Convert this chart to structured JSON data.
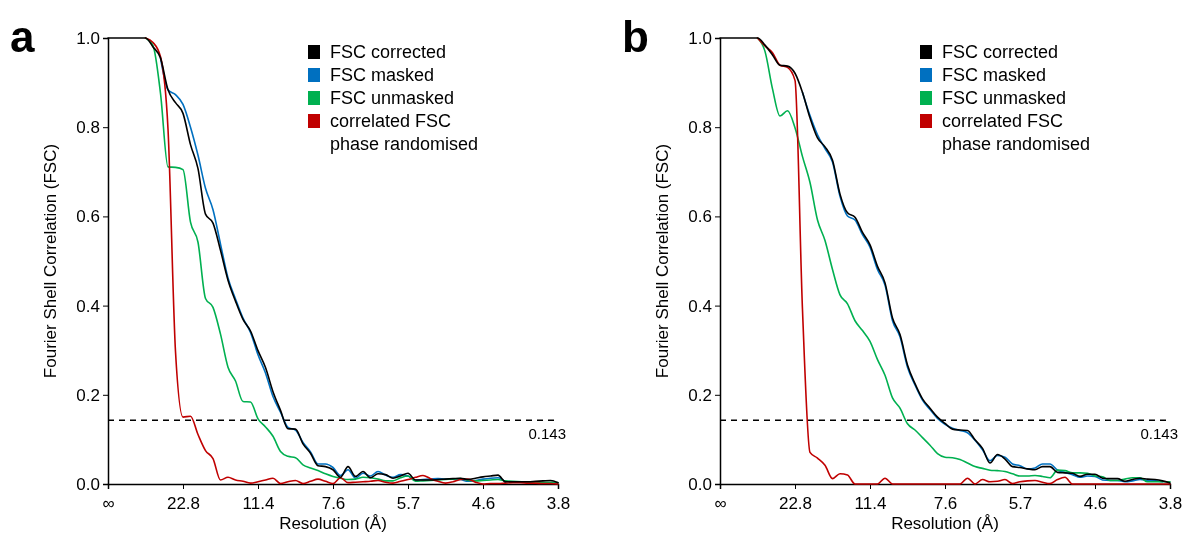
{
  "chart_data": [
    {
      "type": "line",
      "title": "a",
      "xlabel": "Resolution (Å)",
      "ylabel": "Fourier Shell Correlation (FSC)",
      "legend": "top right",
      "line_style": "solid",
      "marker": "none",
      "categories": [
        "∞",
        null,
        null,
        null,
        null,
        null,
        null,
        null,
        null,
        null,
        "22.8",
        null,
        null,
        null,
        null,
        null,
        null,
        null,
        null,
        null,
        "11.4",
        null,
        null,
        null,
        null,
        null,
        null,
        null,
        null,
        null,
        "7.6",
        null,
        null,
        null,
        null,
        null,
        null,
        null,
        null,
        null,
        "5.7",
        null,
        null,
        null,
        null,
        null,
        null,
        null,
        null,
        null,
        "4.6",
        null,
        null,
        null,
        null,
        null,
        null,
        null,
        null,
        null,
        "3.8"
      ],
      "ylim": [
        0,
        1
      ],
      "yticks": [
        {
          "value": 0,
          "label": "0.0"
        },
        {
          "value": 0.2,
          "label": "0.2"
        },
        {
          "value": 0.4,
          "label": "0.4"
        },
        {
          "value": 0.6,
          "label": "0.6"
        },
        {
          "value": 0.8,
          "label": "0.8"
        },
        {
          "value": 1,
          "label": "1.0"
        }
      ],
      "ref_lines": [
        {
          "axis": "y",
          "value": 0.143,
          "label": "0.143",
          "color": "#000000",
          "line_style": "dashed"
        }
      ],
      "series": [
        {
          "name": "FSC corrected",
          "color": "#000000",
          "values": [
            1,
            1,
            1,
            1,
            1,
            1,
            0.98,
            0.955,
            0.884,
            0.855,
            0.831,
            0.761,
            0.707,
            0.605,
            0.585,
            0.524,
            0.457,
            0.41,
            0.369,
            0.343,
            0.299,
            0.261,
            0.207,
            0.165,
            0.124,
            0.123,
            0.09,
            0.069,
            0.041,
            0.039,
            0.032,
            0.015,
            0.039,
            0.017,
            0.028,
            0.014,
            0.023,
            0.021,
            0.013,
            0.018,
            0.024,
            0.009,
            0.009,
            0.009,
            0.01,
            0.011,
            0.012,
            0.013,
            0.01,
            0.013,
            0.016,
            0.018,
            0.02,
            0.005,
            0.005,
            0.005,
            0.005,
            0.006,
            0.007,
            0.008,
            0.003
          ]
        },
        {
          "name": "FSC masked",
          "color": "#0070c0",
          "values": [
            null,
            null,
            null,
            null,
            null,
            null,
            null,
            0.955,
            0.884,
            0.873,
            0.851,
            0.8,
            0.737,
            0.663,
            0.615,
            0.538,
            0.462,
            0.415,
            0.372,
            0.34,
            0.29,
            0.249,
            0.196,
            0.161,
            0.127,
            0.121,
            0.093,
            0.072,
            0.045,
            0.045,
            0.037,
            0.019,
            0.032,
            0.013,
            0.024,
            0.018,
            0.028,
            0.02,
            0.015,
            0.021,
            0.018,
            0.009,
            0.01,
            0.011,
            0.012,
            0.011,
            0.011,
            0.01,
            0.006,
            0.008,
            0.011,
            0.013,
            0.014,
            0.004,
            null,
            null,
            null,
            null,
            null,
            null,
            null
          ]
        },
        {
          "name": "FSC unmasked",
          "color": "#00b050",
          "values": [
            null,
            null,
            null,
            null,
            null,
            1,
            0.983,
            0.876,
            0.711,
            0.71,
            0.705,
            0.587,
            0.542,
            0.416,
            0.396,
            0.336,
            0.262,
            0.231,
            0.185,
            0.184,
            0.146,
            0.128,
            0.107,
            0.073,
            0.062,
            0.059,
            0.043,
            0.036,
            0.03,
            0.023,
            0.017,
            0.013,
            0.01,
            0.011,
            0.015,
            0.014,
            0.011,
            0.007,
            0.007,
            0.014,
            0.018,
            0.006,
            0.007,
            0.008,
            0.009,
            0.01,
            0.011,
            0.012,
            0.008,
            0.007,
            0.008,
            0.009,
            0.01,
            0.007,
            null,
            null,
            null,
            0.004,
            0.004,
            0.004,
            0.003
          ]
        },
        {
          "name": "correlated FSC phase randomised",
          "color": "#c00000",
          "values": [
            null,
            null,
            null,
            null,
            null,
            1,
            0.99,
            0.958,
            0.796,
            0.297,
            0.15,
            0.152,
            0.111,
            0.075,
            0.057,
            0.009,
            0.015,
            0.009,
            0.006,
            0.002,
            0.005,
            0.009,
            0.013,
            0.001,
            0.005,
            0.008,
            0.001,
            0.006,
            0.011,
            0.006,
            0.001,
            0.014,
            0.003,
            0.004,
            0.005,
            0.006,
            0.008,
            0.004,
            0.002,
            0.006,
            0.01,
            0.015,
            0.019,
            0.012,
            0.006,
            0.002,
            0.005,
            0.01,
            0.011,
            0.004,
            0,
            0.001,
            0.001,
            0.002,
            0.003,
            0.003,
            0.002,
            0.002,
            0.001,
            0.001,
            0
          ]
        }
      ]
    },
    {
      "type": "line",
      "title": "b",
      "xlabel": "Resolution (Å)",
      "ylabel": "Fourier Shell Correlation (FSC)",
      "legend": "top right",
      "line_style": "solid",
      "marker": "none",
      "categories": [
        "∞",
        null,
        null,
        null,
        null,
        null,
        null,
        null,
        null,
        null,
        "22.8",
        null,
        null,
        null,
        null,
        null,
        null,
        null,
        null,
        null,
        "11.4",
        null,
        null,
        null,
        null,
        null,
        null,
        null,
        null,
        null,
        "7.6",
        null,
        null,
        null,
        null,
        null,
        null,
        null,
        null,
        null,
        "5.7",
        null,
        null,
        null,
        null,
        null,
        null,
        null,
        null,
        null,
        "4.6",
        null,
        null,
        null,
        null,
        null,
        null,
        null,
        null,
        null,
        "3.8"
      ],
      "ylim": [
        0,
        1
      ],
      "yticks": [
        {
          "value": 0,
          "label": "0.0"
        },
        {
          "value": 0.2,
          "label": "0.2"
        },
        {
          "value": 0.4,
          "label": "0.4"
        },
        {
          "value": 0.6,
          "label": "0.6"
        },
        {
          "value": 0.8,
          "label": "0.8"
        },
        {
          "value": 1,
          "label": "1.0"
        }
      ],
      "ref_lines": [
        {
          "axis": "y",
          "value": 0.143,
          "label": "0.143",
          "color": "#000000",
          "line_style": "dashed"
        }
      ],
      "series": [
        {
          "name": "FSC corrected",
          "color": "#000000",
          "values": [
            1,
            1,
            1,
            1,
            1,
            1,
            0.984,
            0.962,
            0.939,
            0.937,
            0.921,
            0.878,
            0.821,
            0.776,
            0.756,
            0.726,
            0.65,
            0.608,
            0.598,
            0.564,
            0.536,
            0.488,
            0.451,
            0.372,
            0.335,
            0.267,
            0.225,
            0.191,
            0.17,
            0.15,
            0.136,
            0.123,
            0.121,
            0.12,
            0.099,
            0.08,
            0.047,
            0.066,
            0.056,
            0.039,
            0.037,
            0.034,
            0.032,
            0.039,
            0.039,
            0.026,
            0.025,
            0.024,
            0.017,
            0.022,
            0.022,
            0.013,
            0.012,
            0.012,
            0.006,
            0.01,
            0.013,
            0.011,
            0.01,
            0.007,
            0.002
          ]
        },
        {
          "name": "FSC masked",
          "color": "#0070c0",
          "values": [
            null,
            null,
            null,
            null,
            null,
            null,
            null,
            null,
            null,
            null,
            null,
            0.878,
            0.826,
            0.783,
            0.752,
            0.722,
            0.645,
            0.601,
            0.592,
            0.559,
            0.531,
            0.481,
            0.446,
            0.366,
            0.33,
            0.262,
            0.222,
            0.188,
            0.167,
            0.147,
            0.134,
            0.125,
            0.12,
            0.115,
            0.098,
            0.077,
            0.052,
            0.064,
            0.06,
            0.045,
            0.041,
            0.034,
            0.036,
            0.045,
            0.045,
            0.031,
            0.026,
            0.021,
            0.015,
            0.018,
            0.017,
            0.009,
            0.008,
            0.008,
            0.005,
            0.007,
            0.01,
            0.008,
            0.007,
            0.005,
            null
          ]
        },
        {
          "name": "FSC unmasked",
          "color": "#00b050",
          "values": [
            null,
            null,
            null,
            null,
            null,
            1,
            0.97,
            0.886,
            0.825,
            0.837,
            0.799,
            0.734,
            0.676,
            0.592,
            0.546,
            0.481,
            0.424,
            0.404,
            0.366,
            0.344,
            0.32,
            0.279,
            0.244,
            0.193,
            0.17,
            0.135,
            0.121,
            0.104,
            0.087,
            0.068,
            0.06,
            0.059,
            0.055,
            0.047,
            0.039,
            0.035,
            0.031,
            0.03,
            0.028,
            0.023,
            0.018,
            0.018,
            0.019,
            0.017,
            0.014,
            0.031,
            0.03,
            0.025,
            0.025,
            0.024,
            0.018,
            0.016,
            0.008,
            0.008,
            0.011,
            0.014,
            0.014,
            0.005,
            0.005,
            0.005,
            0.005
          ]
        },
        {
          "name": "correlated FSC phase randomised",
          "color": "#c00000",
          "values": [
            null,
            null,
            null,
            null,
            null,
            1,
            0.982,
            0.967,
            0.939,
            0.934,
            0.905,
            0.39,
            0.071,
            0.058,
            0.042,
            0.012,
            0.023,
            0.02,
            0,
            0,
            0,
            0,
            0.013,
            0,
            0,
            0,
            0,
            0,
            0,
            0,
            0,
            0,
            0,
            0.013,
            0,
            0.01,
            0.005,
            0.006,
            0.01,
            0.001,
            0.005,
            0.007,
            0.008,
            0.004,
            0.001,
            0.01,
            0.015,
            0,
            0,
            0,
            0,
            0,
            0,
            0,
            0,
            0,
            0,
            0,
            0,
            0,
            0
          ]
        }
      ]
    }
  ]
}
